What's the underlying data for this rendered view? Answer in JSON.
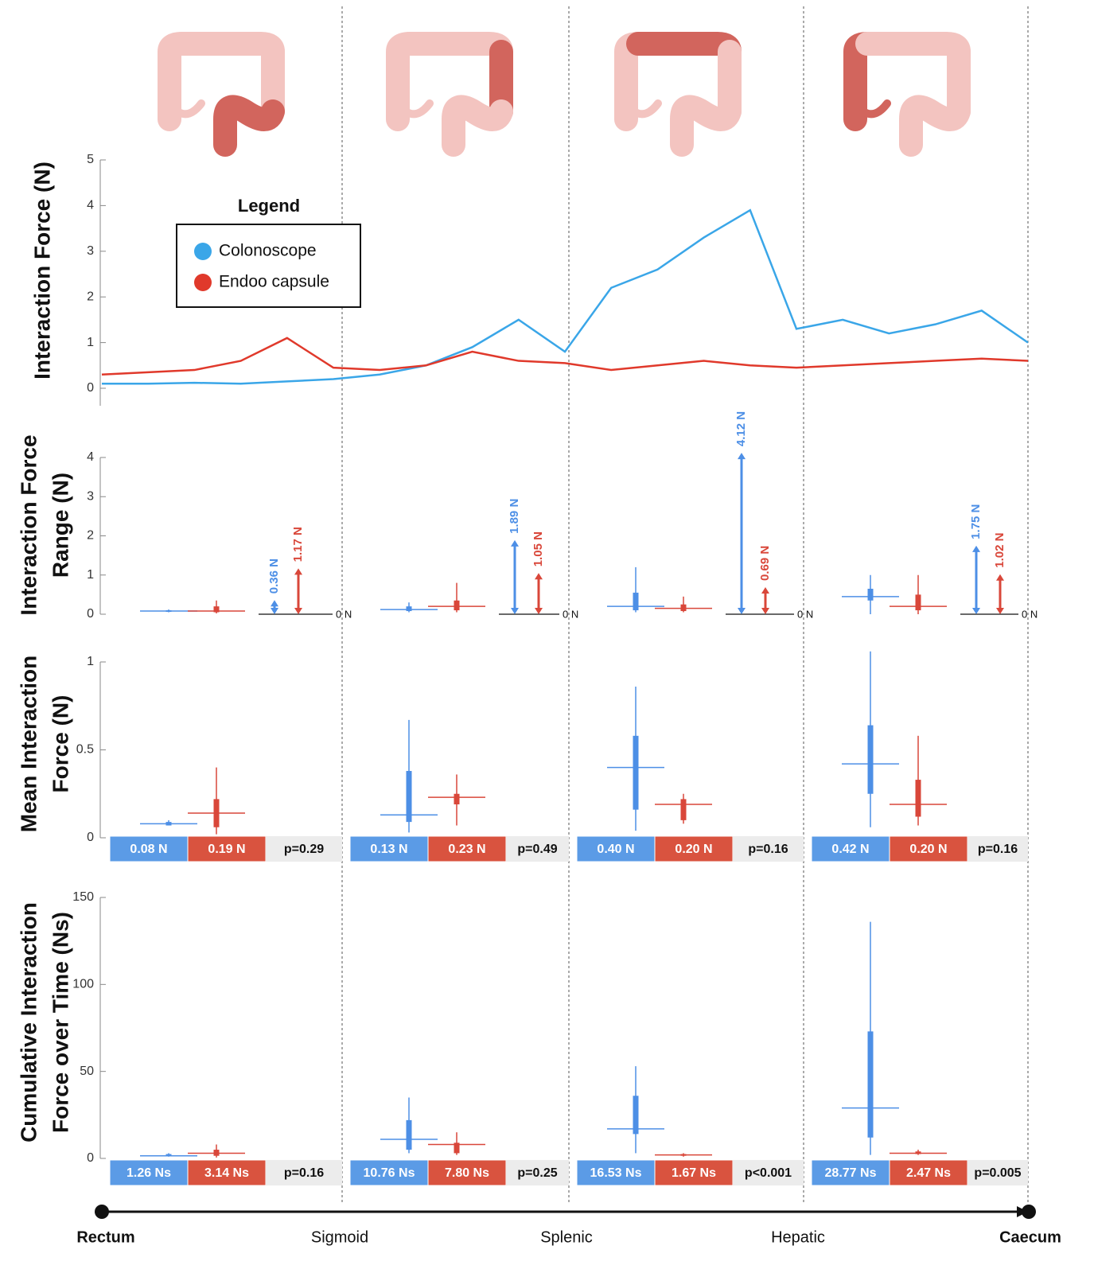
{
  "chart_data": [
    {
      "type": "line",
      "ylabel": [
        "Interaction Force (N)"
      ],
      "ylim": [
        0,
        5
      ],
      "yticks": [
        0,
        1,
        2,
        3,
        4,
        5
      ],
      "xlim": [
        0,
        4
      ],
      "x": [
        0,
        0.2,
        0.4,
        0.6,
        0.8,
        1,
        1.2,
        1.4,
        1.6,
        1.8,
        2,
        2.2,
        2.4,
        2.6,
        2.8,
        3,
        3.2,
        3.4,
        3.6,
        3.8,
        4
      ],
      "legend_title": "Legend",
      "series": [
        {
          "name": "Colonoscope",
          "color": "#3aa6e8",
          "values": [
            0.1,
            0.1,
            0.12,
            0.1,
            0.15,
            0.2,
            0.3,
            0.5,
            0.9,
            1.5,
            0.8,
            2.2,
            2.6,
            3.3,
            3.9,
            1.3,
            1.5,
            1.2,
            1.4,
            1.7,
            1.0
          ]
        },
        {
          "name": "Endoo capsule",
          "color": "#e0392b",
          "values": [
            0.3,
            0.35,
            0.4,
            0.6,
            1.1,
            0.45,
            0.4,
            0.5,
            0.8,
            0.6,
            0.55,
            0.4,
            0.5,
            0.6,
            0.5,
            0.45,
            0.5,
            0.55,
            0.6,
            0.65,
            0.6
          ]
        }
      ]
    },
    {
      "type": "box",
      "ylabel": [
        "Interaction Force",
        "Range (N)"
      ],
      "ylim": [
        0,
        4
      ],
      "yticks": [
        0,
        1,
        2,
        3,
        4
      ],
      "series": [
        {
          "color": "#4d8fe6",
          "boxes": [
            [
              0.05,
              0.06,
              0.08,
              0.1,
              0.12
            ],
            [
              0.05,
              0.08,
              0.12,
              0.2,
              0.3
            ],
            [
              0.05,
              0.1,
              0.2,
              0.55,
              1.2
            ],
            [
              0,
              0.35,
              0.45,
              0.65,
              1.0
            ]
          ]
        },
        {
          "color": "#d9473a",
          "boxes": [
            [
              0.02,
              0.05,
              0.08,
              0.2,
              0.35
            ],
            [
              0.05,
              0.1,
              0.2,
              0.35,
              0.8
            ],
            [
              0.05,
              0.08,
              0.15,
              0.25,
              0.45
            ],
            [
              0,
              0.1,
              0.2,
              0.5,
              1.0
            ]
          ]
        }
      ],
      "ranges": [
        {
          "color": "#4d8fe6",
          "values": [
            0.36,
            1.89,
            4.12,
            1.75
          ],
          "value_labels": [
            "0.36 N",
            "1.89 N",
            "4.12 N",
            "1.75 N"
          ]
        },
        {
          "color": "#d9473a",
          "values": [
            1.17,
            1.05,
            0.69,
            1.02
          ],
          "value_labels": [
            "1.17 N",
            "1.05 N",
            "0.69 N",
            "1.02 N"
          ]
        }
      ],
      "baseline_label": "0 N"
    },
    {
      "type": "box",
      "ylabel": [
        "Mean Interaction",
        "Force (N)"
      ],
      "ylim": [
        0,
        1
      ],
      "yticks": [
        0,
        0.5,
        1
      ],
      "series": [
        {
          "color": "#4d8fe6",
          "boxes": [
            [
              0.07,
              0.07,
              0.08,
              0.09,
              0.1
            ],
            [
              0.03,
              0.09,
              0.13,
              0.38,
              0.67
            ],
            [
              0.04,
              0.16,
              0.4,
              0.58,
              0.86
            ],
            [
              0.06,
              0.25,
              0.42,
              0.64,
              1.06
            ]
          ]
        },
        {
          "color": "#d9473a",
          "boxes": [
            [
              0.02,
              0.06,
              0.14,
              0.22,
              0.4
            ],
            [
              0.07,
              0.19,
              0.23,
              0.25,
              0.36
            ],
            [
              0.08,
              0.1,
              0.19,
              0.22,
              0.25
            ],
            [
              0.07,
              0.12,
              0.19,
              0.33,
              0.58
            ]
          ]
        }
      ],
      "summary": {
        "series": [
          {
            "color": "#5b9be6",
            "values": [
              0.08,
              0.13,
              0.4,
              0.42
            ],
            "value_labels": [
              "0.08 N",
              "0.13 N",
              "0.40 N",
              "0.42 N"
            ]
          },
          {
            "color": "#d9533f",
            "values": [
              0.19,
              0.23,
              0.2,
              0.2
            ],
            "value_labels": [
              "0.19 N",
              "0.23 N",
              "0.20 N",
              "0.20 N"
            ]
          }
        ],
        "p_labels": [
          "p=0.29",
          "p=0.49",
          "p=0.16",
          "p=0.16"
        ]
      }
    },
    {
      "type": "box",
      "ylabel": [
        "Cumulative Interaction",
        "Force over Time (Ns)"
      ],
      "ylim": [
        0,
        150
      ],
      "yticks": [
        0,
        50,
        100,
        150
      ],
      "series": [
        {
          "color": "#4d8fe6",
          "boxes": [
            [
              1,
              1.5,
              1.5,
              2.5,
              3
            ],
            [
              3,
              5,
              11,
              22,
              35
            ],
            [
              3,
              14,
              17,
              36,
              53
            ],
            [
              2,
              12,
              29,
              73,
              136
            ]
          ]
        },
        {
          "color": "#d9473a",
          "boxes": [
            [
              0.5,
              1.5,
              3,
              5,
              8
            ],
            [
              2,
              3,
              8,
              9,
              15
            ],
            [
              1,
              1.5,
              2,
              2.5,
              3
            ],
            [
              2,
              2.5,
              3,
              4,
              5
            ]
          ]
        }
      ],
      "summary": {
        "series": [
          {
            "color": "#5b9be6",
            "values": [
              1.26,
              10.76,
              16.53,
              28.77
            ],
            "value_labels": [
              "1.26 Ns",
              "10.76 Ns",
              "16.53 Ns",
              "28.77 Ns"
            ]
          },
          {
            "color": "#d9533f",
            "values": [
              3.14,
              7.8,
              1.67,
              2.47
            ],
            "value_labels": [
              "3.14 Ns",
              "7.80 Ns",
              "1.67 Ns",
              "2.47 Ns"
            ]
          }
        ],
        "p_labels": [
          "p=0.16",
          "p=0.25",
          "p<0.001",
          "p=0.005"
        ]
      }
    }
  ],
  "segments": [
    "Rectum",
    "Sigmoid",
    "Splenic",
    "Hepatic",
    "Caecum"
  ]
}
